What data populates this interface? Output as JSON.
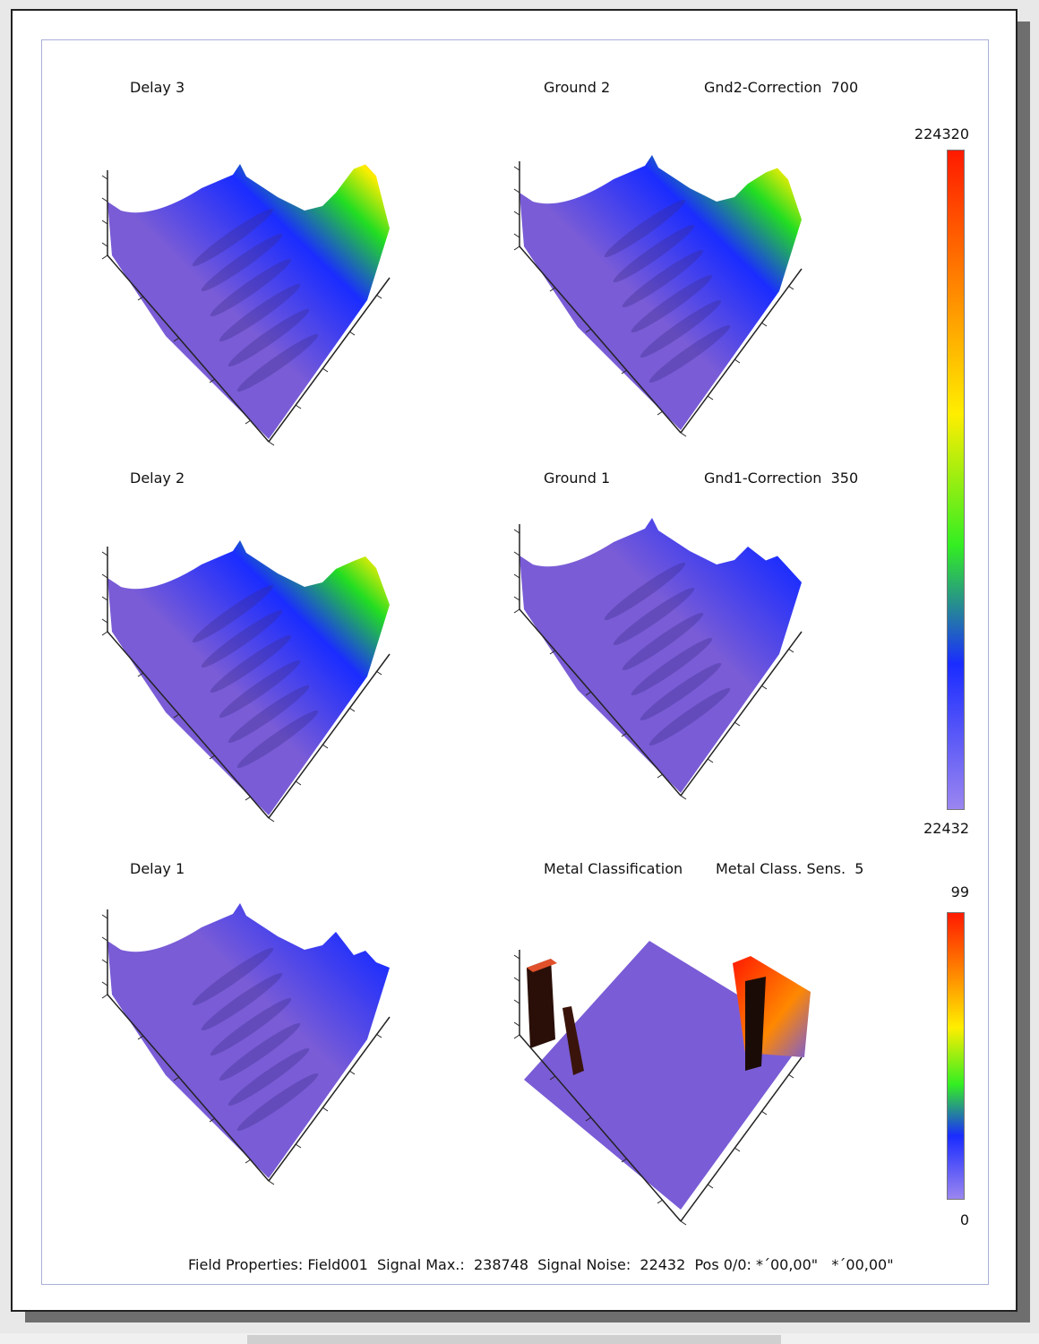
{
  "panels": [
    {
      "title": "Delay 3",
      "correction": "",
      "peak": 0.95,
      "id": "delay-3"
    },
    {
      "title": "Ground 2",
      "correction": "Gnd2-Correction  700",
      "peak": 0.75,
      "id": "ground-2"
    },
    {
      "title": "Delay 2",
      "correction": "",
      "peak": 0.7,
      "id": "delay-2"
    },
    {
      "title": "Ground 1",
      "correction": "Gnd1-Correction  350",
      "peak": 0.35,
      "id": "ground-1"
    },
    {
      "title": "Delay 1",
      "correction": "",
      "peak": 0.2,
      "id": "delay-1"
    },
    {
      "title": "Metal Classification",
      "correction": "Metal Class. Sens.  5",
      "peak": 0.8,
      "id": "metal-classification"
    }
  ],
  "signal_scale": {
    "max": "224320",
    "min": "22432"
  },
  "class_scale": {
    "max": "99",
    "min": "0"
  },
  "footer": "Field Properties: Field001  Signal Max.:  238748  Signal Noise:  22432  Pos 0/0: *´00,00\"   *´00,00\"",
  "colors": {
    "surface": "#7a5cd6",
    "surface_dark": "#3a2a8a",
    "blue": "#1a2cff",
    "green": "#22dd22",
    "yellow": "#ffee00",
    "orange": "#ff8800",
    "red": "#ff1a00",
    "low": "#9b86f0"
  }
}
